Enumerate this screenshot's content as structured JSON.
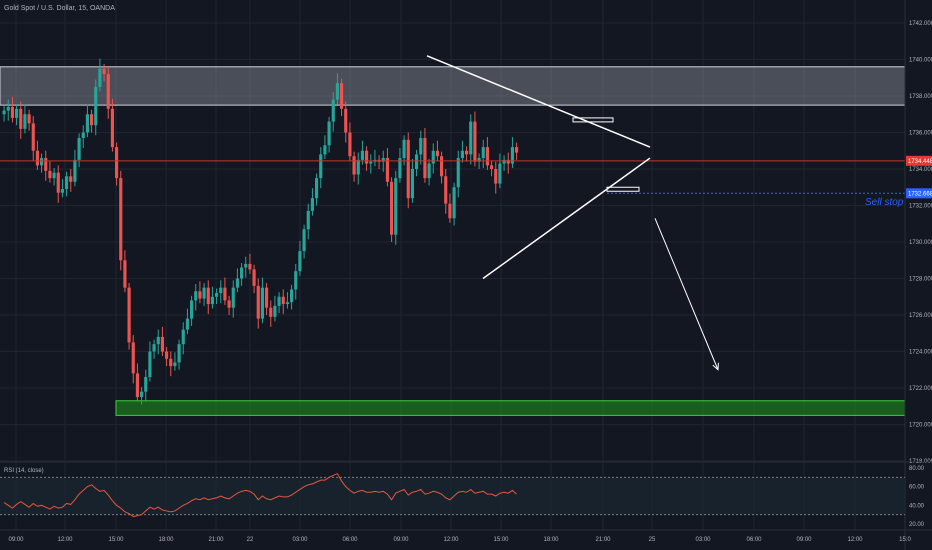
{
  "title": "Gold Spot / U.S. Dollar, 15, OANDA",
  "rsi_label": "RSI (14, close)",
  "annotations": {
    "sell_stop": "Sell stop",
    "current_price": "1734.448",
    "sell_stop_price": "1732.668"
  },
  "colors": {
    "background": "#131722",
    "bull": "#26a69a",
    "bear": "#ef5350",
    "resistance_zone": "#b2b5be",
    "support_zone": "#1e8c1e",
    "current_price_line": "#c0392b",
    "sell_stop_line": "#2962ff",
    "rsi_line": "#e8553c"
  },
  "chart_data": {
    "type": "candlestick",
    "symbol": "Gold Spot / U.S. Dollar",
    "interval": "15",
    "source": "OANDA",
    "ylim": [
      1717,
      1743
    ],
    "y_ticks": [
      "1742.000",
      "1740.000",
      "1738.000",
      "1736.000",
      "1734.000",
      "1732.000",
      "1730.000",
      "1728.000",
      "1726.000",
      "1724.000",
      "1722.000",
      "1720.000",
      "1718.000"
    ],
    "x_ticks": [
      "09:00",
      "12:00",
      "15:00",
      "18:00",
      "21:00",
      "22",
      "03:00",
      "06:00",
      "09:00",
      "12:00",
      "15:00",
      "18:00",
      "21:00",
      "25",
      "03:00",
      "06:00",
      "09:00",
      "12:00",
      "15:0"
    ],
    "closes": [
      1737.2,
      1737.4,
      1736.8,
      1737.3,
      1736.2,
      1737.0,
      1736.5,
      1735.0,
      1734.2,
      1734.6,
      1733.9,
      1733.5,
      1733.8,
      1732.7,
      1732.9,
      1733.6,
      1733.3,
      1734.5,
      1735.7,
      1736.0,
      1737.0,
      1736.4,
      1738.5,
      1739.5,
      1739.2,
      1737.3,
      1735.2,
      1733.5,
      1729.0,
      1727.5,
      1724.5,
      1722.8,
      1721.5,
      1721.8,
      1722.6,
      1724.0,
      1724.4,
      1724.8,
      1724.0,
      1723.6,
      1723.2,
      1723.4,
      1724.4,
      1725.2,
      1725.8,
      1726.8,
      1727.3,
      1726.9,
      1727.5,
      1726.6,
      1727.0,
      1727.2,
      1727.5,
      1726.8,
      1726.4,
      1727.5,
      1728.0,
      1728.6,
      1728.8,
      1728.5,
      1727.6,
      1725.8,
      1727.5,
      1726.4,
      1725.9,
      1726.5,
      1727.0,
      1726.6,
      1726.7,
      1727.4,
      1728.4,
      1729.5,
      1730.7,
      1731.7,
      1732.4,
      1733.5,
      1734.8,
      1735.3,
      1736.6,
      1737.8,
      1738.7,
      1737.3,
      1736.0,
      1734.7,
      1733.7,
      1734.5,
      1735.0,
      1734.3,
      1734.4,
      1734.5,
      1734.4,
      1734.6,
      1733.3,
      1730.4,
      1733.5,
      1734.6,
      1735.6,
      1732.4,
      1734.0,
      1734.8,
      1735.7,
      1733.5,
      1734.3,
      1735.0,
      1734.7,
      1733.6,
      1732.1,
      1731.3,
      1733.0,
      1734.6,
      1735.0,
      1734.8,
      1736.6,
      1734.4,
      1734.6,
      1735.2,
      1734.2,
      1734.0,
      1733.2,
      1734.3,
      1734.5,
      1734.3,
      1735.2,
      1734.9
    ],
    "trendlines": [
      {
        "from": [
          "10:00",
          1740.2
        ],
        "to": [
          "23:15",
          1735.2
        ]
      },
      {
        "from": [
          "15:00",
          1728.0
        ],
        "to": [
          "23:15",
          1734.6
        ]
      }
    ],
    "zones": [
      {
        "name": "resistance",
        "y_range": [
          1737.5,
          1739.6
        ]
      },
      {
        "name": "support",
        "y_range": [
          1720.5,
          1721.3
        ]
      }
    ],
    "levels": {
      "current_price": 1734.448,
      "sell_stop": 1732.668
    },
    "projection_arrow": {
      "from": [
        "00:00",
        1731.3
      ],
      "to": [
        "03:00",
        1723.0
      ]
    },
    "rsi": {
      "period": 14,
      "ylim": [
        20,
        80
      ],
      "y_ticks": [
        "80.00",
        "60.00",
        "40.00",
        "20.00"
      ],
      "values": [
        43,
        40,
        37,
        41,
        44,
        41,
        38,
        42,
        39,
        40,
        38,
        36,
        39,
        37,
        38,
        42,
        41,
        46,
        52,
        56,
        60,
        62,
        58,
        55,
        56,
        51,
        45,
        40,
        37,
        33,
        31,
        28,
        29,
        30,
        34,
        38,
        36,
        38,
        35,
        34,
        33,
        34,
        37,
        40,
        42,
        45,
        47,
        46,
        48,
        46,
        47,
        48,
        50,
        48,
        47,
        50,
        53,
        55,
        56,
        55,
        52,
        46,
        50,
        47,
        46,
        48,
        50,
        49,
        49,
        51,
        54,
        57,
        60,
        62,
        63,
        65,
        67,
        67,
        70,
        72,
        74,
        66,
        60,
        56,
        53,
        55,
        56,
        54,
        54,
        55,
        54,
        55,
        52,
        46,
        53,
        55,
        57,
        51,
        54,
        55,
        57,
        52,
        53,
        55,
        54,
        52,
        48,
        46,
        50,
        54,
        55,
        54,
        57,
        53,
        54,
        55,
        52,
        52,
        50,
        53,
        54,
        53,
        56,
        52
      ]
    }
  }
}
